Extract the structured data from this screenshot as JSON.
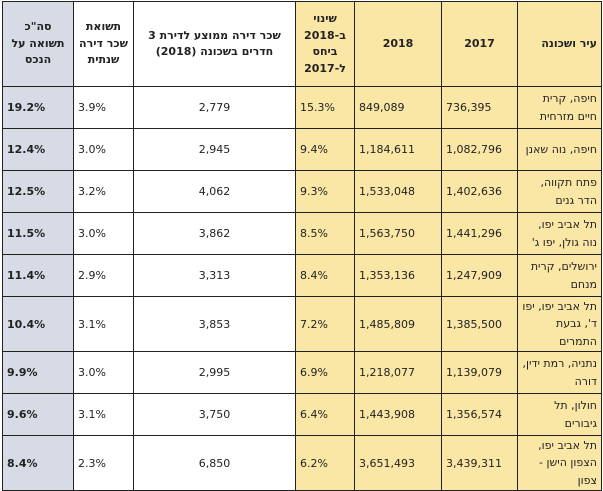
{
  "colors": {
    "highlight_yellow": "#fbe7a5",
    "highlight_grey": "#d6dbe5"
  },
  "headers": {
    "city": "עיר ושכונה",
    "y2017": "2017",
    "y2018": "2018",
    "change": "שינוי ב-2018 ביחס ל-2017",
    "rent": "שכר דירה ממוצע לדירת 3 חדרים בשכונה (2018)",
    "rent_yield": "תשואת שכר דירה שנתית",
    "total": "סה\"כ תשואה על הנכס"
  },
  "rows": [
    {
      "city": "חיפה, קרית חיים מזרחית",
      "y2017": "736,395",
      "y2018": "849,089",
      "change": "15.3%",
      "rent": "2,779",
      "rent_yield": "3.9%",
      "total": "19.2%"
    },
    {
      "city": "חיפה, נוה שאנן",
      "y2017": "1,082,796",
      "y2018": "1,184,611",
      "change": "9.4%",
      "rent": "2,945",
      "rent_yield": "3.0%",
      "total": "12.4%"
    },
    {
      "city": "פתח תקווה, הדר גנים",
      "y2017": "1,402,636",
      "y2018": "1,533,048",
      "change": "9.3%",
      "rent": "4,062",
      "rent_yield": "3.2%",
      "total": "12.5%"
    },
    {
      "city": "תל אביב יפו, נוה גולן, יפו ג'",
      "y2017": "1,441,296",
      "y2018": "1,563,750",
      "change": "8.5%",
      "rent": "3,862",
      "rent_yield": "3.0%",
      "total": "11.5%"
    },
    {
      "city": "ירושלים, קרית מנחם",
      "y2017": "1,247,909",
      "y2018": "1,353,136",
      "change": "8.4%",
      "rent": "3,313",
      "rent_yield": "2.9%",
      "total": "11.4%"
    },
    {
      "city": "תל אביב יפו, יפו ד', גבעת התמרים",
      "y2017": "1,385,500",
      "y2018": "1,485,809",
      "change": "7.2%",
      "rent": "3,853",
      "rent_yield": "3.1%",
      "total": "10.4%"
    },
    {
      "city": "נתניה, רמת ידין, דורה",
      "y2017": "1,139,079",
      "y2018": "1,218,077",
      "change": "6.9%",
      "rent": "2,995",
      "rent_yield": "3.0%",
      "total": "9.9%"
    },
    {
      "city": "חולון, תל גיבורים",
      "y2017": "1,356,574",
      "y2018": "1,443,908",
      "change": "6.4%",
      "rent": "3,750",
      "rent_yield": "3.1%",
      "total": "9.6%"
    },
    {
      "city": "תל אביב יפו, הצפון הישן - צפון",
      "y2017": "3,439,311",
      "y2018": "3,651,493",
      "change": "6.2%",
      "rent": "6,850",
      "rent_yield": "2.3%",
      "total": "8.4%"
    }
  ]
}
